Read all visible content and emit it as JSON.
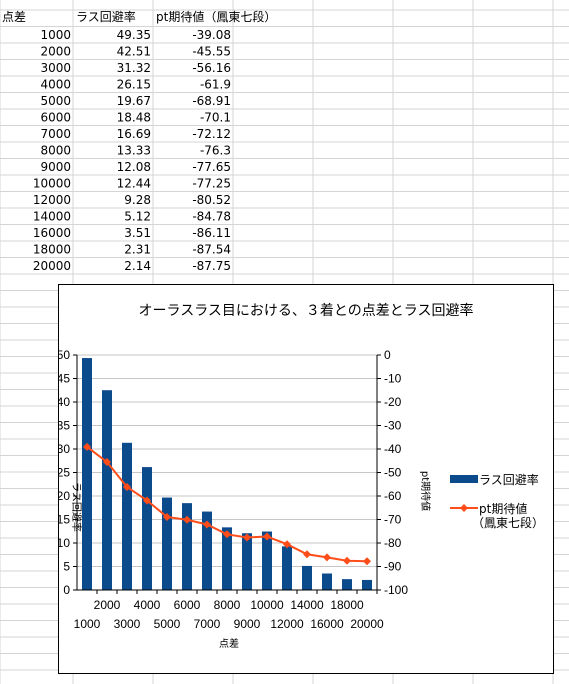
{
  "table": {
    "headers": [
      "点差",
      "ラス回避率",
      "pt期待値（鳳東七段）"
    ],
    "rows": [
      [
        "1000",
        "49.35",
        "-39.08"
      ],
      [
        "2000",
        "42.51",
        "-45.55"
      ],
      [
        "3000",
        "31.32",
        "-56.16"
      ],
      [
        "4000",
        "26.15",
        "-61.9"
      ],
      [
        "5000",
        "19.67",
        "-68.91"
      ],
      [
        "6000",
        "18.48",
        "-70.1"
      ],
      [
        "7000",
        "16.69",
        "-72.12"
      ],
      [
        "8000",
        "13.33",
        "-76.3"
      ],
      [
        "9000",
        "12.08",
        "-77.65"
      ],
      [
        "10000",
        "12.44",
        "-77.25"
      ],
      [
        "12000",
        "9.28",
        "-80.52"
      ],
      [
        "14000",
        "5.12",
        "-84.78"
      ],
      [
        "16000",
        "3.51",
        "-86.11"
      ],
      [
        "18000",
        "2.31",
        "-87.54"
      ],
      [
        "20000",
        "2.14",
        "-87.75"
      ]
    ]
  },
  "colors": {
    "bar": "#0b4a8b",
    "line": "#ff4d1a",
    "grid": "#c6c6c6"
  },
  "chart_data": {
    "type": "bar",
    "title": "オーラスラス目における、３着との点差とラス回避率",
    "xlabel": "点差",
    "ylabel": "ラス回避率",
    "y2label": "pt期待値",
    "categories": [
      "1000",
      "2000",
      "3000",
      "4000",
      "5000",
      "6000",
      "7000",
      "8000",
      "9000",
      "10000",
      "12000",
      "14000",
      "16000",
      "18000",
      "20000"
    ],
    "ylim": [
      0,
      50
    ],
    "yticks": [
      "0",
      "5",
      "10",
      "15",
      "20",
      "25",
      "30",
      "35",
      "40",
      "45",
      "50"
    ],
    "y2lim": [
      -100,
      0
    ],
    "y2ticks": [
      "0",
      "-10",
      "-20",
      "-30",
      "-40",
      "-50",
      "-60",
      "-70",
      "-80",
      "-90",
      "-100"
    ],
    "series": [
      {
        "name": "ラス回避率",
        "kind": "bar",
        "axis": "left",
        "values": [
          49.35,
          42.51,
          31.32,
          26.15,
          19.67,
          18.48,
          16.69,
          13.33,
          12.08,
          12.44,
          9.28,
          5.12,
          3.51,
          2.31,
          2.14
        ]
      },
      {
        "name": "pt期待値（鳳東七段）",
        "kind": "line",
        "axis": "right",
        "values": [
          -39.08,
          -45.55,
          -56.16,
          -61.9,
          -68.91,
          -70.1,
          -72.12,
          -76.3,
          -77.65,
          -77.25,
          -80.52,
          -84.78,
          -86.11,
          -87.54,
          -87.75
        ]
      }
    ],
    "legend": {
      "position": "right",
      "entries": [
        "ラス回避率",
        "pt期待値",
        "（鳳東七段）"
      ]
    }
  }
}
